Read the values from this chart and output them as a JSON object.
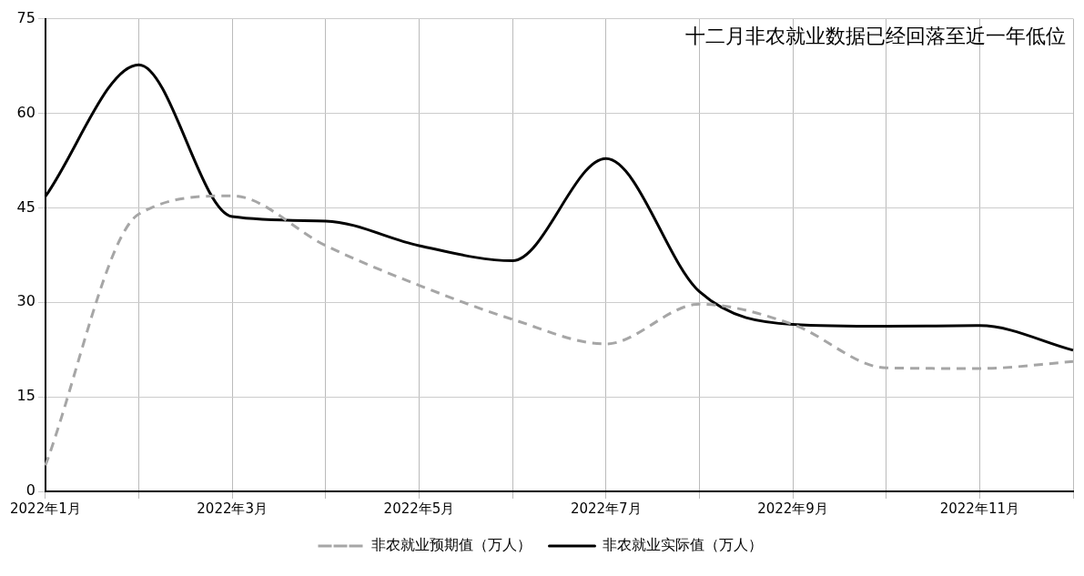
{
  "chart_data": {
    "type": "line",
    "title": "十二月非农就业数据已经回落至近一年低位",
    "categories": [
      "2022年1月",
      null,
      "2022年3月",
      null,
      "2022年5月",
      null,
      "2022年7月",
      null,
      "2022年9月",
      null,
      "2022年11月",
      null
    ],
    "series": [
      {
        "name": "非农就业预期值（万人）",
        "color": "#a6a6a6",
        "line_style": "dashed",
        "values": [
          4.1,
          44.0,
          46.9,
          39.0,
          32.7,
          27.3,
          23.4,
          29.7,
          26.5,
          19.6,
          19.5,
          20.6
        ]
      },
      {
        "name": "非农就业实际值（万人）",
        "color": "#000000",
        "line_style": "solid",
        "values": [
          46.8,
          67.7,
          43.6,
          42.9,
          39.0,
          36.6,
          52.8,
          31.7,
          26.5,
          26.2,
          26.3,
          22.4
        ]
      }
    ],
    "ylim": [
      0,
      75
    ],
    "yticks": [
      0,
      15,
      30,
      45,
      60,
      75
    ],
    "grid": true,
    "legend": "bottom",
    "marker": "none"
  }
}
